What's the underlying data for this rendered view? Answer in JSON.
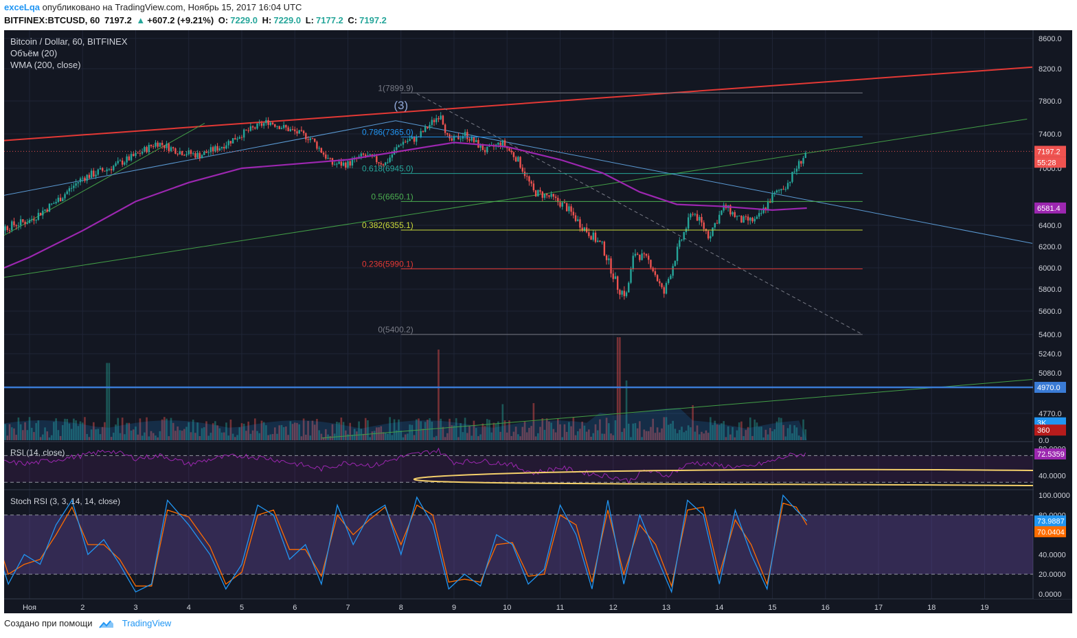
{
  "header": {
    "user": "exceLqa",
    "published": "опубликовано на TradingView.com, Ноябрь 15, 2017 16:04 UTC",
    "symbol": "BITFINEX:BTCUSD, 60",
    "last": "7197.2",
    "change": "+607.2 (+9.21%)",
    "o_label": "O:",
    "o_val": "7229.0",
    "h_label": "H:",
    "h_val": "7229.0",
    "l_label": "L:",
    "l_val": "7177.2",
    "c_label": "C:",
    "c_val": "7197.2"
  },
  "legend": {
    "title": "Bitcoin / Dollar, 60, BITFINEX",
    "volume": "Объём (20)",
    "wma": "WMA (200, close)",
    "rsi": "RSI (14, close)",
    "stoch": "Stoch RSI (3, 3, 14, 14, close)"
  },
  "footer": {
    "made_with": "Создано при помощи",
    "brand": "TradingView"
  },
  "colors": {
    "background": "#131722",
    "up": "#26a69a",
    "down": "#ef5350",
    "wma": "#9c27b0",
    "rsi": "#9c27b0",
    "stoch_k": "#2196f3",
    "stoch_d": "#ff6d00",
    "trend_red": "#e53935",
    "trend_green": "#43a047",
    "hline_blue": "#3a7bd5"
  },
  "chart_data": [
    {
      "type": "candlestick",
      "title": "Bitcoin / Dollar, 60, BITFINEX",
      "x_ticks": [
        "Ноя",
        "2",
        "3",
        "4",
        "5",
        "6",
        "7",
        "8",
        "9",
        "10",
        "11",
        "12",
        "13",
        "14",
        "15",
        "16",
        "17",
        "18",
        "19"
      ],
      "y_ticks": [
        "8600.0",
        "8200.0",
        "7800.0",
        "7400.0",
        "7000.0",
        "6400.0",
        "6200.0",
        "6000.0",
        "5800.0",
        "5600.0",
        "5400.0",
        "5240.0",
        "5080.0",
        "4770.0",
        "0.0"
      ],
      "price_markers": [
        {
          "label": "7197.2",
          "price": 7197.2,
          "color": "#ef5350"
        },
        {
          "label": "55:28",
          "price": 7070,
          "color": "#ef5350"
        },
        {
          "label": "6581.4",
          "price": 6581.4,
          "color": "#9c27b0"
        },
        {
          "label": "4970.0",
          "price": 4970.0,
          "color": "#3a7bd5"
        },
        {
          "label": "3K",
          "price": 4640,
          "color": "#2196f3"
        },
        {
          "label": "360",
          "price": 4540,
          "color": "#b71c1c"
        }
      ],
      "close_path": [
        [
          0,
          6300
        ],
        [
          1,
          6450
        ],
        [
          1.5,
          6650
        ],
        [
          2,
          6900
        ],
        [
          2.5,
          7000
        ],
        [
          3,
          7150
        ],
        [
          3.4,
          7300
        ],
        [
          3.8,
          7200
        ],
        [
          4.2,
          7150
        ],
        [
          4.6,
          7250
        ],
        [
          5,
          7400
        ],
        [
          5.5,
          7550
        ],
        [
          5.9,
          7450
        ],
        [
          6.3,
          7350
        ],
        [
          6.7,
          7050
        ],
        [
          7,
          7050
        ],
        [
          7.3,
          7150
        ],
        [
          7.7,
          7050
        ],
        [
          8,
          7300
        ],
        [
          8.3,
          7350
        ],
        [
          8.6,
          7550
        ],
        [
          8.75,
          7650
        ],
        [
          8.9,
          7300
        ],
        [
          9.2,
          7400
        ],
        [
          9.6,
          7200
        ],
        [
          9.9,
          7300
        ],
        [
          10.2,
          7100
        ],
        [
          10.5,
          6750
        ],
        [
          10.8,
          6700
        ],
        [
          11.1,
          6600
        ],
        [
          11.4,
          6400
        ],
        [
          11.8,
          6200
        ],
        [
          12.1,
          5800
        ],
        [
          12.25,
          5750
        ],
        [
          12.4,
          6150
        ],
        [
          12.7,
          6050
        ],
        [
          12.95,
          5750
        ],
        [
          13.2,
          6150
        ],
        [
          13.5,
          6550
        ],
        [
          13.8,
          6300
        ],
        [
          14.1,
          6600
        ],
        [
          14.4,
          6450
        ],
        [
          14.7,
          6450
        ],
        [
          15,
          6700
        ],
        [
          15.3,
          6850
        ],
        [
          15.5,
          7050
        ],
        [
          15.65,
          7197
        ]
      ],
      "wma_path": [
        [
          0,
          5890
        ],
        [
          1,
          6100
        ],
        [
          2,
          6350
        ],
        [
          3,
          6650
        ],
        [
          4,
          6850
        ],
        [
          5,
          7000
        ],
        [
          6,
          7050
        ],
        [
          7,
          7100
        ],
        [
          8,
          7200
        ],
        [
          9,
          7300
        ],
        [
          10,
          7250
        ],
        [
          11,
          7100
        ],
        [
          11.8,
          6950
        ],
        [
          12.5,
          6750
        ],
        [
          13.2,
          6620
        ],
        [
          14,
          6600
        ],
        [
          15,
          6560
        ],
        [
          15.65,
          6581
        ]
      ],
      "fibonacci": [
        {
          "label": "1(7899.9)",
          "price": 7899.9,
          "color": "#787b86"
        },
        {
          "label": "0.786(7365.0)",
          "price": 7365.0,
          "color": "#2196f3"
        },
        {
          "label": "0.618(6945.0)",
          "price": 6945.0,
          "color": "#26a69a"
        },
        {
          "label": "0.5(6650.1)",
          "price": 6650.1,
          "color": "#4caf50"
        },
        {
          "label": "0.382(6355.1)",
          "price": 6355.1,
          "color": "#cddc39"
        },
        {
          "label": "0.236(5990.1)",
          "price": 5990.1,
          "color": "#e53935"
        },
        {
          "label": "0(5400.2)",
          "price": 5400.2,
          "color": "#787b86"
        }
      ],
      "fib_range_days": [
        8.0,
        16.7
      ],
      "wave_label": "(3)",
      "trendlines": [
        {
          "color": "#e53935",
          "from": [
            0,
            7300
          ],
          "to": [
            19.9,
            8220
          ]
        },
        {
          "color": "#43a047",
          "from": [
            0,
            5870
          ],
          "to": [
            19.8,
            7580
          ]
        },
        {
          "color": "#43a047",
          "from": [
            0,
            6160
          ],
          "to": [
            4.3,
            7530
          ]
        },
        {
          "color": "#43a047",
          "from": [
            6.5,
            4430
          ],
          "to": [
            19.9,
            5030
          ]
        },
        {
          "color": "#5b9bd5",
          "from": [
            0,
            6660
          ],
          "to": [
            7.9,
            7560
          ]
        },
        {
          "color": "#5b9bd5",
          "from": [
            7.9,
            7560
          ],
          "to": [
            19.9,
            6230
          ]
        },
        {
          "color": "#787b86",
          "dashed": true,
          "from": [
            8.3,
            7890
          ],
          "to": [
            16.7,
            5400
          ]
        }
      ],
      "hline": {
        "price": 4970.0,
        "color": "#3a7bd5"
      },
      "volume_spikes": [
        {
          "day": 2.48,
          "height": 0.75
        },
        {
          "day": 8.7,
          "height": 0.88
        },
        {
          "day": 12.1,
          "height": 1.0
        },
        {
          "day": 12.25,
          "height": 0.58
        },
        {
          "day": 9.9,
          "height": 0.35
        },
        {
          "day": 10.5,
          "height": 0.36
        },
        {
          "day": 13.5,
          "height": 0.34
        }
      ]
    },
    {
      "type": "line",
      "title": "RSI (14, close)",
      "y_ticks": [
        "80.0000",
        "40.0000"
      ],
      "current": "72.5359",
      "bands": [
        70,
        30
      ],
      "ylim": [
        20,
        90
      ],
      "values": [
        [
          0,
          62
        ],
        [
          1,
          58
        ],
        [
          2,
          70
        ],
        [
          2.5,
          78
        ],
        [
          3,
          66
        ],
        [
          3.5,
          70
        ],
        [
          4,
          57
        ],
        [
          4.5,
          66
        ],
        [
          5,
          70
        ],
        [
          5.5,
          66
        ],
        [
          6,
          58
        ],
        [
          6.5,
          50
        ],
        [
          7,
          60
        ],
        [
          7.5,
          55
        ],
        [
          8,
          68
        ],
        [
          8.7,
          78
        ],
        [
          9,
          60
        ],
        [
          9.5,
          62
        ],
        [
          10,
          58
        ],
        [
          10.5,
          44
        ],
        [
          11,
          52
        ],
        [
          11.5,
          44
        ],
        [
          12,
          38
        ],
        [
          12.3,
          32
        ],
        [
          12.6,
          48
        ],
        [
          13,
          40
        ],
        [
          13.5,
          60
        ],
        [
          14,
          55
        ],
        [
          14.5,
          52
        ],
        [
          15,
          62
        ],
        [
          15.3,
          70
        ],
        [
          15.65,
          72.5
        ]
      ]
    },
    {
      "type": "line",
      "title": "Stoch RSI (3, 3, 14, 14, close)",
      "y_ticks": [
        "100.0000",
        "80.0000",
        "40.0000",
        "20.0000",
        "0.0000"
      ],
      "current_k": "73.9887",
      "current_d": "70.0404",
      "bands": [
        80,
        20
      ],
      "ylim": [
        -5,
        105
      ],
      "k_values": [
        [
          0,
          95
        ],
        [
          0.3,
          60
        ],
        [
          0.6,
          10
        ],
        [
          0.9,
          40
        ],
        [
          1.2,
          30
        ],
        [
          1.5,
          70
        ],
        [
          1.8,
          95
        ],
        [
          2.1,
          40
        ],
        [
          2.4,
          55
        ],
        [
          2.7,
          30
        ],
        [
          3,
          2
        ],
        [
          3.3,
          10
        ],
        [
          3.6,
          95
        ],
        [
          4,
          70
        ],
        [
          4.4,
          40
        ],
        [
          4.7,
          5
        ],
        [
          5,
          30
        ],
        [
          5.3,
          90
        ],
        [
          5.6,
          80
        ],
        [
          5.9,
          35
        ],
        [
          6.2,
          50
        ],
        [
          6.5,
          10
        ],
        [
          6.8,
          90
        ],
        [
          7.1,
          50
        ],
        [
          7.4,
          80
        ],
        [
          7.7,
          90
        ],
        [
          8,
          40
        ],
        [
          8.3,
          98
        ],
        [
          8.6,
          70
        ],
        [
          8.9,
          5
        ],
        [
          9.2,
          20
        ],
        [
          9.5,
          8
        ],
        [
          9.8,
          60
        ],
        [
          10.1,
          50
        ],
        [
          10.4,
          10
        ],
        [
          10.7,
          25
        ],
        [
          11,
          90
        ],
        [
          11.3,
          60
        ],
        [
          11.6,
          5
        ],
        [
          11.9,
          95
        ],
        [
          12.2,
          10
        ],
        [
          12.5,
          80
        ],
        [
          12.8,
          40
        ],
        [
          13.1,
          2
        ],
        [
          13.4,
          95
        ],
        [
          13.7,
          80
        ],
        [
          14,
          10
        ],
        [
          14.3,
          85
        ],
        [
          14.6,
          40
        ],
        [
          14.9,
          5
        ],
        [
          15.2,
          100
        ],
        [
          15.45,
          85
        ],
        [
          15.65,
          74
        ]
      ],
      "d_values": [
        [
          0,
          90
        ],
        [
          0.3,
          70
        ],
        [
          0.6,
          20
        ],
        [
          0.9,
          30
        ],
        [
          1.2,
          35
        ],
        [
          1.5,
          60
        ],
        [
          1.8,
          88
        ],
        [
          2.1,
          50
        ],
        [
          2.4,
          50
        ],
        [
          2.7,
          35
        ],
        [
          3,
          8
        ],
        [
          3.3,
          8
        ],
        [
          3.6,
          85
        ],
        [
          4,
          78
        ],
        [
          4.4,
          48
        ],
        [
          4.7,
          10
        ],
        [
          5,
          22
        ],
        [
          5.3,
          80
        ],
        [
          5.6,
          85
        ],
        [
          5.9,
          45
        ],
        [
          6.2,
          45
        ],
        [
          6.5,
          18
        ],
        [
          6.8,
          80
        ],
        [
          7.1,
          60
        ],
        [
          7.4,
          75
        ],
        [
          7.7,
          88
        ],
        [
          8,
          50
        ],
        [
          8.3,
          90
        ],
        [
          8.6,
          80
        ],
        [
          8.9,
          12
        ],
        [
          9.2,
          15
        ],
        [
          9.5,
          12
        ],
        [
          9.8,
          50
        ],
        [
          10.1,
          52
        ],
        [
          10.4,
          18
        ],
        [
          10.7,
          20
        ],
        [
          11,
          80
        ],
        [
          11.3,
          70
        ],
        [
          11.6,
          12
        ],
        [
          11.9,
          85
        ],
        [
          12.2,
          20
        ],
        [
          12.5,
          70
        ],
        [
          12.8,
          50
        ],
        [
          13.1,
          8
        ],
        [
          13.4,
          85
        ],
        [
          13.7,
          88
        ],
        [
          14,
          20
        ],
        [
          14.3,
          75
        ],
        [
          14.6,
          50
        ],
        [
          14.9,
          10
        ],
        [
          15.2,
          92
        ],
        [
          15.45,
          88
        ],
        [
          15.65,
          70
        ]
      ]
    }
  ]
}
